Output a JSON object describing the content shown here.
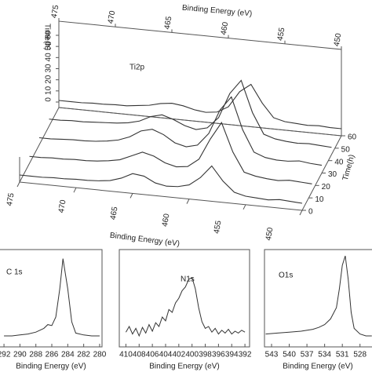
{
  "chart_data": [
    {
      "type": "waterfall3d",
      "title": "Ti2p",
      "xlabel": "Binding Energy (eV)",
      "zlabel": "Time(h)",
      "xlim": [
        475,
        450
      ],
      "xticks": [
        475,
        470,
        465,
        460,
        455,
        450
      ],
      "zlim": [
        0,
        60
      ],
      "zticks": [
        0,
        10,
        20,
        30,
        40,
        50,
        60
      ],
      "color": "#333333",
      "x": [
        475,
        474,
        473,
        472,
        471,
        470,
        469,
        468,
        467,
        466,
        465,
        464,
        463,
        462,
        461,
        460,
        459,
        458,
        457,
        456,
        455,
        454,
        453,
        452,
        451,
        450
      ],
      "series": [
        {
          "depth": 0,
          "values": [
            10,
            10,
            10,
            11,
            11,
            12,
            12,
            13,
            15,
            20,
            28,
            26,
            18,
            15,
            16,
            20,
            32,
            50,
            30,
            16,
            12,
            11,
            10,
            12,
            11,
            10
          ]
        },
        {
          "depth": 15,
          "values": [
            10,
            10,
            11,
            11,
            12,
            12,
            13,
            15,
            18,
            25,
            32,
            28,
            20,
            16,
            18,
            30,
            60,
            85,
            45,
            18,
            14,
            12,
            11,
            13,
            12,
            11
          ]
        },
        {
          "depth": 30,
          "values": [
            10,
            10,
            11,
            12,
            12,
            13,
            15,
            18,
            24,
            34,
            38,
            32,
            22,
            18,
            22,
            40,
            75,
            95,
            50,
            20,
            14,
            12,
            12,
            14,
            12,
            11
          ]
        },
        {
          "depth": 45,
          "values": [
            10,
            10,
            11,
            11,
            12,
            13,
            14,
            16,
            20,
            28,
            32,
            27,
            20,
            16,
            20,
            36,
            72,
            92,
            48,
            19,
            14,
            12,
            11,
            12,
            11,
            10
          ]
        },
        {
          "depth": 60,
          "values": [
            10,
            10,
            10,
            11,
            11,
            12,
            12,
            14,
            16,
            20,
            22,
            20,
            16,
            14,
            16,
            25,
            48,
            60,
            35,
            16,
            12,
            11,
            10,
            11,
            10,
            10
          ]
        }
      ]
    },
    {
      "type": "line",
      "title": "C 1s",
      "xlabel": "Binding Energy (eV)",
      "color": "#333333",
      "xlim": [
        292.5,
        279.7
      ],
      "ylim": [
        0,
        100
      ],
      "xticks": [
        292,
        290,
        288,
        286,
        284,
        282,
        280
      ],
      "x": [
        292,
        291,
        290,
        289,
        288,
        287,
        286.5,
        286,
        285.5,
        285,
        284.6,
        284,
        283.5,
        283,
        282,
        281,
        280
      ],
      "values": [
        10,
        10,
        11,
        12,
        14,
        18,
        22,
        21,
        30,
        60,
        92,
        60,
        25,
        13,
        11,
        10,
        10
      ]
    },
    {
      "type": "line",
      "title": "N1s",
      "xlabel": "Binding Energy (eV)",
      "color": "#333333",
      "xlim": [
        411,
        391.3
      ],
      "ylim": [
        0,
        100
      ],
      "xticks": [
        410,
        408,
        406,
        404,
        402,
        400,
        398,
        396,
        394,
        392
      ],
      "x": [
        410,
        409.5,
        409,
        408.5,
        408,
        407.5,
        407,
        406.5,
        406,
        405.5,
        405,
        404.5,
        404,
        403.5,
        403,
        402.5,
        402,
        401.5,
        401,
        400.5,
        400,
        399.5,
        399,
        398.5,
        398,
        397.5,
        397,
        396.5,
        396,
        395.5,
        395,
        394.5,
        394,
        393.5,
        393,
        392.5,
        392
      ],
      "values": [
        14,
        20,
        12,
        18,
        10,
        19,
        13,
        22,
        15,
        24,
        20,
        30,
        26,
        38,
        35,
        45,
        50,
        58,
        62,
        70,
        72,
        60,
        40,
        25,
        18,
        20,
        14,
        18,
        12,
        16,
        13,
        17,
        12,
        15,
        13,
        16,
        14
      ]
    },
    {
      "type": "line",
      "title": "O1s",
      "xlabel": "Binding Energy (eV)",
      "color": "#333333",
      "xlim": [
        544.2,
        526.1
      ],
      "ylim": [
        0,
        100
      ],
      "xticks": [
        543,
        540,
        537,
        534,
        531,
        528
      ],
      "x": [
        544,
        542,
        540,
        538,
        536,
        535,
        534,
        533,
        532,
        531.5,
        531,
        530.5,
        530,
        529.5,
        529,
        528,
        527,
        526
      ],
      "values": [
        12,
        13,
        14,
        15,
        17,
        19,
        22,
        28,
        40,
        60,
        85,
        95,
        70,
        35,
        18,
        12,
        10,
        10
      ]
    }
  ]
}
